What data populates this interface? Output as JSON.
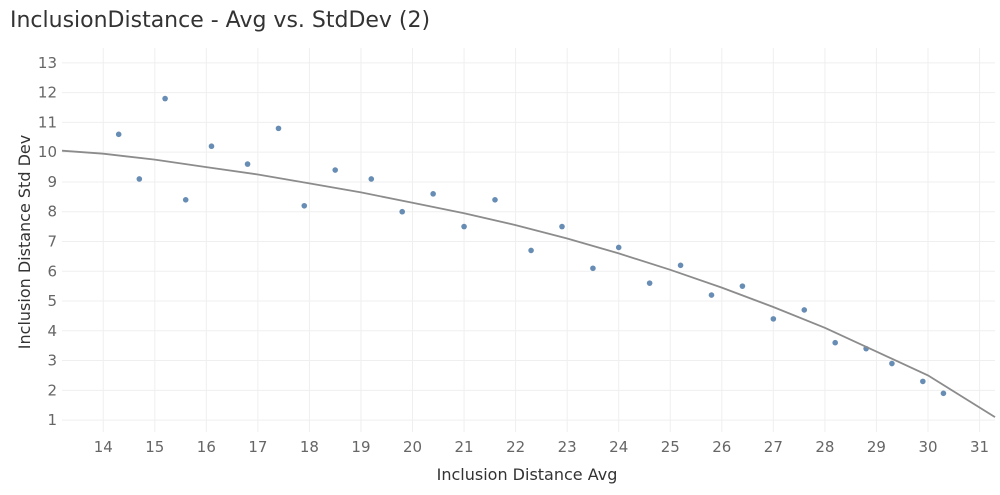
{
  "chart_data": {
    "type": "scatter",
    "title": "InclusionDistance - Avg vs. StdDev (2)",
    "xlabel": "Inclusion Distance Avg",
    "ylabel": "Inclusion Distance Std Dev",
    "xlim": [
      13.2,
      31.3
    ],
    "ylim": [
      0.6,
      13.5
    ],
    "x_ticks": [
      14,
      15,
      16,
      17,
      18,
      19,
      20,
      21,
      22,
      23,
      24,
      25,
      26,
      27,
      28,
      29,
      30,
      31
    ],
    "y_ticks": [
      1,
      2,
      3,
      4,
      5,
      6,
      7,
      8,
      9,
      10,
      11,
      12,
      13
    ],
    "grid": true,
    "point_color": "#4e79a7",
    "trend_color": "#8c8c8c",
    "trend_line": {
      "x": [
        13.2,
        14,
        15,
        16,
        17,
        18,
        19,
        20,
        21,
        22,
        23,
        24,
        25,
        26,
        27,
        28,
        29,
        30,
        31.3
      ],
      "y": [
        10.05,
        9.95,
        9.75,
        9.5,
        9.25,
        8.95,
        8.65,
        8.3,
        7.95,
        7.55,
        7.1,
        6.6,
        6.05,
        5.45,
        4.8,
        4.1,
        3.3,
        2.5,
        1.1
      ]
    },
    "series": [
      {
        "x": [
          14.3,
          14.7,
          15.2,
          15.6,
          16.1,
          16.8,
          17.4,
          17.9,
          18.5,
          19.2,
          19.8,
          20.4,
          21.0,
          21.6,
          22.3,
          22.9,
          23.5,
          24.0,
          24.6,
          25.2,
          25.8,
          26.4,
          27.0,
          27.6,
          28.2,
          28.8,
          29.3,
          29.9,
          30.3
        ],
        "y": [
          10.6,
          9.1,
          11.8,
          8.4,
          10.2,
          9.6,
          10.8,
          8.2,
          9.4,
          9.1,
          8.0,
          8.6,
          7.5,
          8.4,
          6.7,
          7.5,
          6.1,
          6.8,
          5.6,
          6.2,
          5.2,
          5.5,
          4.4,
          4.7,
          3.6,
          3.4,
          2.9,
          2.3,
          1.9
        ]
      }
    ]
  }
}
